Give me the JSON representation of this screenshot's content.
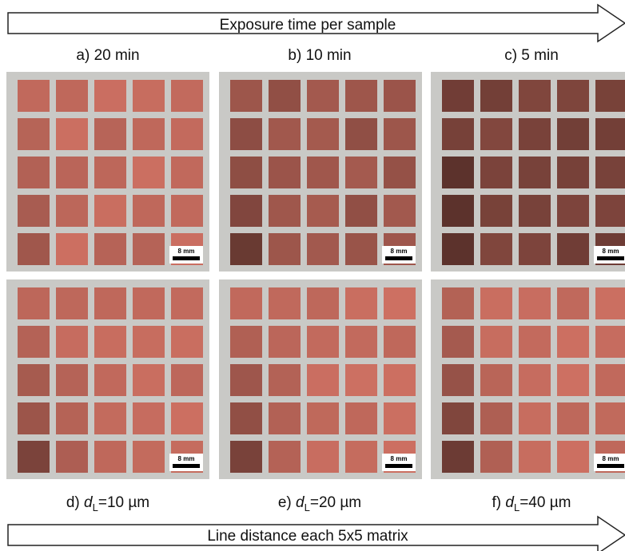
{
  "top_arrow": "Exposure time per sample",
  "bottom_arrow": "Line distance each 5x5 matrix",
  "panels": [
    {
      "label": "a) 20 min",
      "scale_bar": "8 mm"
    },
    {
      "label": "b) 10 min",
      "scale_bar": "8 mm"
    },
    {
      "label": "c) 5 min",
      "scale_bar": "8 mm"
    },
    {
      "label": {
        "prefix": "d)",
        "var": "d",
        "sub": "L",
        "rest": "=10 µm"
      },
      "scale_bar": "8 mm"
    },
    {
      "label": {
        "prefix": "e)",
        "var": "d",
        "sub": "L",
        "rest": "=20 µm"
      },
      "scale_bar": "8 mm"
    },
    {
      "label": {
        "prefix": "f)",
        "var": "d",
        "sub": "L",
        "rest": "=40 µm"
      },
      "scale_bar": "8 mm"
    }
  ]
}
